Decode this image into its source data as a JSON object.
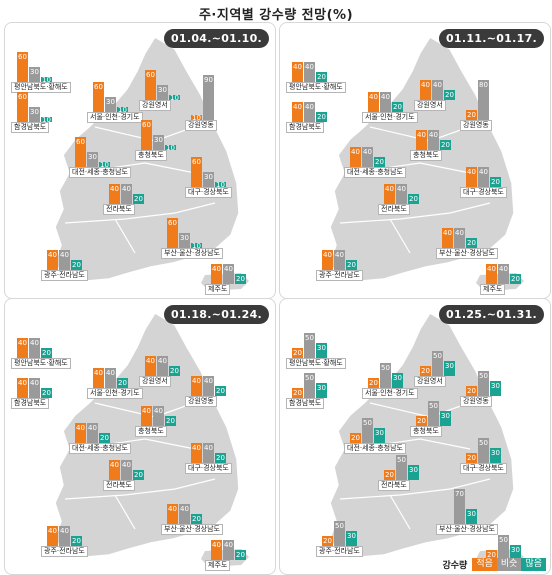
{
  "title": "주·지역별 강수량 전망(%)",
  "legend": {
    "title": "강수량",
    "low": "적음",
    "normal": "비슷",
    "high": "많음"
  },
  "colors": {
    "low": "#f07b1b",
    "normal": "#9a9a9a",
    "high": "#1aa392"
  },
  "region_names": [
    "평안남북도·황해도",
    "함경남북도",
    "서울·인천·경기도",
    "강원영서",
    "강원영동",
    "대전·세종·충청남도",
    "충청북도",
    "대구·경상북도",
    "전라북도",
    "부산·울산·경상남도",
    "광주·전라남도",
    "제주도"
  ],
  "panels": [
    {
      "period": "01.04.~01.10.",
      "values": [
        [
          60,
          30,
          10
        ],
        [
          60,
          30,
          10
        ],
        [
          60,
          30,
          10
        ],
        [
          60,
          30,
          10
        ],
        [
          10,
          90,
          0
        ],
        [
          60,
          30,
          10
        ],
        [
          60,
          30,
          10
        ],
        [
          60,
          30,
          10
        ],
        [
          40,
          40,
          20
        ],
        [
          60,
          30,
          10
        ],
        [
          40,
          40,
          20
        ],
        [
          40,
          40,
          20
        ]
      ]
    },
    {
      "period": "01.11.~01.17.",
      "values": [
        [
          40,
          40,
          20
        ],
        [
          40,
          40,
          20
        ],
        [
          40,
          40,
          20
        ],
        [
          40,
          40,
          20
        ],
        [
          20,
          80,
          0
        ],
        [
          40,
          40,
          20
        ],
        [
          40,
          40,
          20
        ],
        [
          40,
          40,
          20
        ],
        [
          40,
          40,
          20
        ],
        [
          40,
          40,
          20
        ],
        [
          40,
          40,
          20
        ],
        [
          40,
          40,
          20
        ]
      ]
    },
    {
      "period": "01.18.~01.24.",
      "values": [
        [
          40,
          40,
          20
        ],
        [
          40,
          40,
          20
        ],
        [
          40,
          40,
          20
        ],
        [
          40,
          40,
          20
        ],
        [
          40,
          40,
          20
        ],
        [
          40,
          40,
          20
        ],
        [
          40,
          40,
          20
        ],
        [
          40,
          40,
          20
        ],
        [
          40,
          40,
          20
        ],
        [
          40,
          40,
          20
        ],
        [
          40,
          40,
          20
        ],
        [
          40,
          40,
          20
        ]
      ]
    },
    {
      "period": "01.25.~01.31.",
      "values": [
        [
          20,
          50,
          30
        ],
        [
          20,
          50,
          30
        ],
        [
          20,
          50,
          30
        ],
        [
          20,
          50,
          30
        ],
        [
          20,
          50,
          30
        ],
        [
          20,
          50,
          30
        ],
        [
          20,
          50,
          30
        ],
        [
          20,
          50,
          30
        ],
        [
          20,
          50,
          30
        ],
        [
          0,
          70,
          30
        ],
        [
          20,
          50,
          30
        ],
        [
          20,
          50,
          30
        ]
      ]
    }
  ]
}
